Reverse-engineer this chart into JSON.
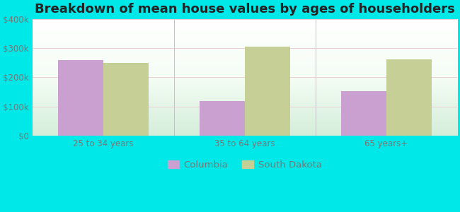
{
  "title": "Breakdown of mean house values by ages of householders",
  "categories": [
    "25 to 34 years",
    "35 to 64 years",
    "65 years+"
  ],
  "columbia_values": [
    258000,
    120000,
    152000
  ],
  "south_dakota_values": [
    248000,
    305000,
    262000
  ],
  "columbia_color": "#c9a0d0",
  "south_dakota_color": "#c5cf96",
  "background_outer": "#00e8e8",
  "ylim": [
    0,
    400000
  ],
  "yticks": [
    0,
    100000,
    200000,
    300000,
    400000
  ],
  "ytick_labels": [
    "$0",
    "$100k",
    "$200k",
    "$300k",
    "$400k"
  ],
  "bar_width": 0.32,
  "legend_labels": [
    "Columbia",
    "South Dakota"
  ],
  "title_fontsize": 13,
  "tick_fontsize": 8.5,
  "legend_fontsize": 9.5,
  "tick_color": "#777777",
  "title_color": "#222222"
}
